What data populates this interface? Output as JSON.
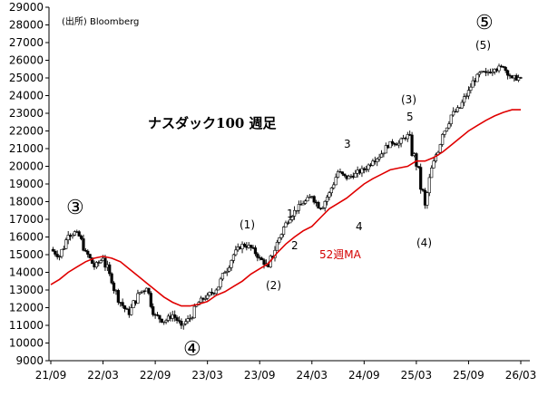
{
  "chart_data": {
    "type": "candlestick",
    "title": "ナスダック100 週足",
    "source": "(出所) Bloomberg",
    "ylim": [
      9000,
      29000
    ],
    "yticks": [
      "9000",
      "10000",
      "11000",
      "12000",
      "13000",
      "14000",
      "15000",
      "16000",
      "17000",
      "18000",
      "19000",
      "20000",
      "21000",
      "22000",
      "23000",
      "24000",
      "25000",
      "26000",
      "27000",
      "28000",
      "29000"
    ],
    "xticks": [
      "21/09",
      "22/03",
      "22/09",
      "23/03",
      "23/09",
      "24/03",
      "24/09",
      "25/03",
      "25/09",
      "26/03"
    ],
    "x": [
      "21/09",
      "21/10",
      "21/11",
      "21/12",
      "22/01",
      "22/02",
      "22/03",
      "22/04",
      "22/05",
      "22/06",
      "22/07",
      "22/08",
      "22/09",
      "22/10",
      "22/11",
      "22/12",
      "23/01",
      "23/02",
      "23/03",
      "23/04",
      "23/05",
      "23/06",
      "23/07",
      "23/08",
      "23/09",
      "23/10",
      "23/11",
      "23/12",
      "24/01",
      "24/02",
      "24/03",
      "24/04",
      "24/05",
      "24/06",
      "24/07",
      "24/08",
      "24/09",
      "24/10",
      "24/11",
      "24/12",
      "25/01",
      "25/02",
      "25/03",
      "25/04",
      "25/05",
      "25/06",
      "25/07",
      "25/08",
      "25/09",
      "25/10",
      "25/11",
      "25/12",
      "26/01",
      "26/02",
      "26/03"
    ],
    "series": [
      {
        "name": "price",
        "values": [
          15300,
          14900,
          16100,
          16300,
          15200,
          14300,
          14800,
          13400,
          12300,
          11600,
          12800,
          13100,
          11600,
          11200,
          11600,
          11000,
          11400,
          12300,
          12700,
          13000,
          14000,
          15000,
          15600,
          15400,
          14800,
          14300,
          15700,
          16800,
          17500,
          17900,
          18300,
          17600,
          18500,
          19700,
          19300,
          19600,
          19800,
          20300,
          20700,
          21400,
          21300,
          21800,
          20000,
          17800,
          20300,
          21800,
          22900,
          23300,
          24300,
          25200,
          25300,
          25500,
          25600,
          25000,
          25000
        ]
      },
      {
        "name": "52週MA",
        "values": [
          13300,
          13600,
          14000,
          14300,
          14600,
          14800,
          14900,
          14800,
          14600,
          14200,
          13800,
          13400,
          13000,
          12600,
          12300,
          12100,
          12100,
          12200,
          12350,
          12700,
          12900,
          13200,
          13500,
          13900,
          14200,
          14500,
          15100,
          15600,
          16000,
          16350,
          16600,
          17100,
          17600,
          17900,
          18200,
          18600,
          19000,
          19300,
          19550,
          19800,
          19900,
          20000,
          20300,
          20300,
          20500,
          20800,
          21200,
          21600,
          22000,
          22300,
          22600,
          22850,
          23050,
          23200,
          23200
        ]
      }
    ],
    "annotations": {
      "circled_3": "③",
      "circled_4": "④",
      "circled_5": "⑤",
      "label_1": "(1)",
      "label_2": "(2)",
      "label_3": "(3)",
      "label_4": "(4)",
      "label_5": "(5)",
      "sub_1": "1",
      "sub_2": "2",
      "sub_3": "3",
      "sub_4": "4",
      "sub_5": "5",
      "ma_label": "52週MA"
    },
    "colors": {
      "candle": "#000000",
      "ma": "#e00000",
      "axis": "#000000"
    },
    "grid": false
  }
}
